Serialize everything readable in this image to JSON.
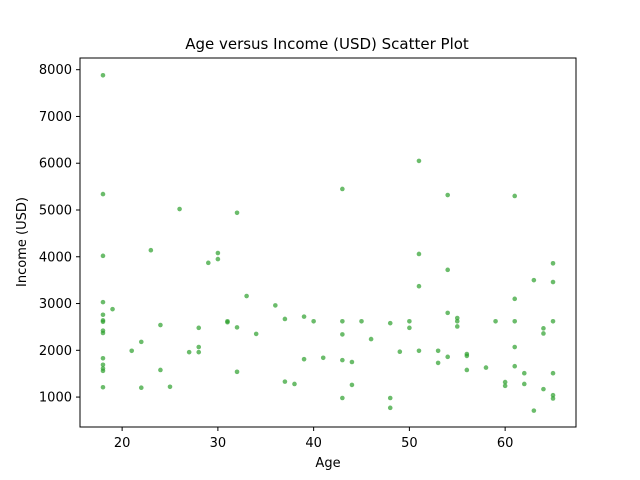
{
  "chart_data": {
    "type": "scatter",
    "title": "Age versus Income (USD) Scatter Plot",
    "xlabel": "Age",
    "ylabel": "Income (USD)",
    "xlim": [
      15.6,
      67.4
    ],
    "ylim": [
      360,
      8250
    ],
    "xticks": [
      20,
      30,
      40,
      50,
      60
    ],
    "yticks": [
      1000,
      2000,
      3000,
      4000,
      5000,
      6000,
      7000,
      8000
    ],
    "grid": false,
    "colors": {
      "point": "#2ca02c",
      "axis": "#000000",
      "background": "#ffffff"
    },
    "series": [
      {
        "points": [
          [
            18,
            7880
          ],
          [
            18,
            5340
          ],
          [
            18,
            4020
          ],
          [
            18,
            3030
          ],
          [
            18,
            2760
          ],
          [
            18,
            2640
          ],
          [
            18,
            2610
          ],
          [
            18,
            2420
          ],
          [
            18,
            2370
          ],
          [
            18,
            1830
          ],
          [
            18,
            1690
          ],
          [
            18,
            1610
          ],
          [
            18,
            1560
          ],
          [
            18,
            1210
          ],
          [
            19,
            2880
          ],
          [
            21,
            1990
          ],
          [
            22,
            2180
          ],
          [
            22,
            1200
          ],
          [
            23,
            4140
          ],
          [
            24,
            2540
          ],
          [
            24,
            1580
          ],
          [
            25,
            1220
          ],
          [
            26,
            5020
          ],
          [
            27,
            1960
          ],
          [
            28,
            2480
          ],
          [
            28,
            2070
          ],
          [
            28,
            1960
          ],
          [
            29,
            3870
          ],
          [
            30,
            4080
          ],
          [
            30,
            3950
          ],
          [
            31,
            2620
          ],
          [
            31,
            2600
          ],
          [
            32,
            4940
          ],
          [
            32,
            2490
          ],
          [
            32,
            1540
          ],
          [
            33,
            3160
          ],
          [
            34,
            2350
          ],
          [
            36,
            2960
          ],
          [
            37,
            2670
          ],
          [
            37,
            1330
          ],
          [
            38,
            1280
          ],
          [
            39,
            2720
          ],
          [
            39,
            1810
          ],
          [
            40,
            2620
          ],
          [
            41,
            1840
          ],
          [
            43,
            5450
          ],
          [
            43,
            2620
          ],
          [
            43,
            2340
          ],
          [
            43,
            1790
          ],
          [
            43,
            980
          ],
          [
            44,
            1750
          ],
          [
            44,
            1260
          ],
          [
            45,
            2620
          ],
          [
            46,
            2240
          ],
          [
            48,
            2580
          ],
          [
            48,
            980
          ],
          [
            48,
            770
          ],
          [
            49,
            1970
          ],
          [
            50,
            2620
          ],
          [
            50,
            2480
          ],
          [
            51,
            6050
          ],
          [
            51,
            4060
          ],
          [
            51,
            3370
          ],
          [
            51,
            1990
          ],
          [
            53,
            1990
          ],
          [
            53,
            1730
          ],
          [
            54,
            5320
          ],
          [
            54,
            3720
          ],
          [
            54,
            2800
          ],
          [
            54,
            1860
          ],
          [
            55,
            2690
          ],
          [
            55,
            2620
          ],
          [
            55,
            2510
          ],
          [
            56,
            1920
          ],
          [
            56,
            1880
          ],
          [
            56,
            1580
          ],
          [
            58,
            1630
          ],
          [
            59,
            2620
          ],
          [
            60,
            1320
          ],
          [
            60,
            1240
          ],
          [
            61,
            5300
          ],
          [
            61,
            3100
          ],
          [
            61,
            2620
          ],
          [
            61,
            2070
          ],
          [
            61,
            1660
          ],
          [
            62,
            1510
          ],
          [
            62,
            1280
          ],
          [
            63,
            3500
          ],
          [
            63,
            710
          ],
          [
            64,
            2470
          ],
          [
            64,
            2360
          ],
          [
            64,
            1170
          ],
          [
            65,
            3860
          ],
          [
            65,
            3460
          ],
          [
            65,
            2620
          ],
          [
            65,
            1510
          ],
          [
            65,
            1040
          ],
          [
            65,
            970
          ]
        ]
      }
    ]
  }
}
